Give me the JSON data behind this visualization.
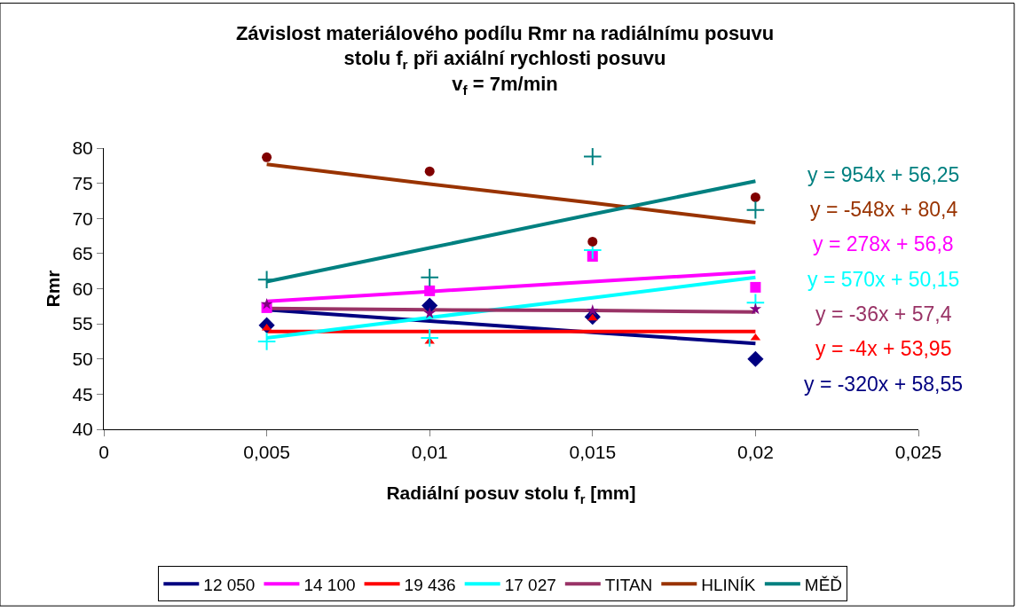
{
  "chart_data": {
    "type": "scatter",
    "title": "Závislost materiálového podílu Rmr na radiálnímu posuvu\nstolu f$_{r}$ při axiální rychlosti posuvu\nv$_{f}$ = 7m/min",
    "xlabel": "Radiální posuv stolu f$_{r}$ [mm]",
    "ylabel": "Rmr",
    "x": [
      0.005,
      0.01,
      0.015,
      0.02
    ],
    "series": [
      {
        "marker": "diamond",
        "color": "#000080",
        "values": [
          54.8,
          57.6,
          56.0,
          50.0
        ]
      },
      {
        "marker": "square",
        "color": "#ff00ff",
        "values": [
          57.3,
          59.7,
          64.6,
          60.2
        ]
      },
      {
        "marker": "triangle",
        "color": "#ff0000",
        "values": [
          54.4,
          52.5,
          55.8,
          53.0
        ]
      },
      {
        "marker": "cross",
        "color": "#00ffff",
        "values": [
          52.5,
          53.0,
          65.5,
          58.0
        ]
      },
      {
        "marker": "star",
        "color": "#800080",
        "values": [
          57.8,
          56.5,
          56.9,
          57.1
        ]
      },
      {
        "marker": "circle",
        "color": "#800000",
        "values": [
          78.7,
          76.7,
          66.7,
          73.0
        ]
      },
      {
        "marker": "cross",
        "color": "#008080",
        "values": [
          61.3,
          61.6,
          78.8,
          71.2
        ]
      },
      {
        "type": "line",
        "name": "12 050",
        "color": "#000080",
        "values": [
          57.0,
          55.4,
          53.8,
          52.2
        ]
      },
      {
        "type": "line",
        "name": "14 100",
        "color": "#ff00ff",
        "values": [
          58.2,
          59.6,
          61.0,
          62.4
        ]
      },
      {
        "type": "line",
        "name": "19 436",
        "color": "#ff0000",
        "values": [
          53.9,
          53.9,
          53.9,
          53.9
        ]
      },
      {
        "type": "line",
        "name": "17 027",
        "color": "#00ffff",
        "values": [
          53.0,
          55.9,
          58.7,
          61.6
        ]
      },
      {
        "type": "line",
        "name": "TITAN",
        "color": "#993366",
        "values": [
          57.2,
          57.0,
          56.9,
          56.7
        ]
      },
      {
        "type": "line",
        "name": "HLINÍK",
        "color": "#993300",
        "values": [
          77.7,
          74.9,
          72.2,
          69.4
        ]
      },
      {
        "type": "line",
        "name": "MĚĎ",
        "color": "#008080",
        "values": [
          61.0,
          65.8,
          70.6,
          75.3
        ]
      }
    ],
    "annotations": [
      "y = 954x + 56,25",
      "y = -548x + 80,4",
      "y = 278x + 56,8",
      "y = 570x + 50,15",
      "y = -36x + 57,4",
      "y = -4x + 53,95",
      "y = -320x + 58,55"
    ],
    "xlim": [
      0,
      0.025
    ],
    "xticks": [
      0,
      {
        "value": 0.005,
        "label": "0,005"
      },
      {
        "value": 0.01,
        "label": "0,01"
      },
      {
        "value": 0.015,
        "label": "0,015"
      },
      {
        "value": 0.02,
        "label": "0,02"
      },
      {
        "value": 0.025,
        "label": "0,025"
      }
    ],
    "ylim": [
      40,
      80
    ],
    "yticks": [
      40,
      45,
      50,
      55,
      60,
      65,
      70,
      75,
      80
    ],
    "legend": "bottom"
  }
}
